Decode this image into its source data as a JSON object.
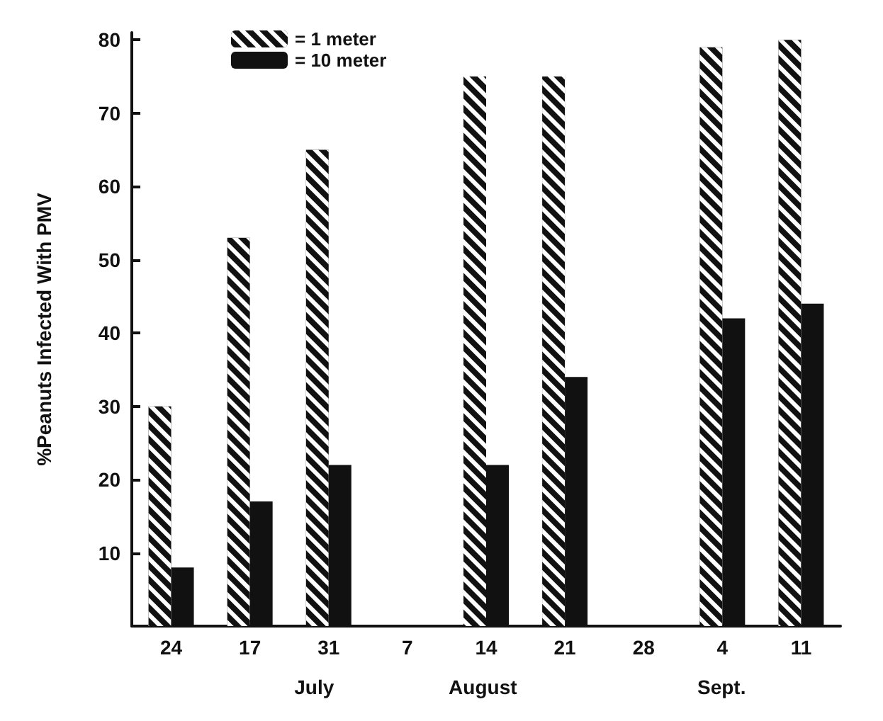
{
  "chart_data": {
    "type": "bar",
    "ylabel": "%Peanuts Infected With PMV",
    "categories": [
      "24",
      "17",
      "31",
      "7",
      "14",
      "21",
      "28",
      "4",
      "11"
    ],
    "series": [
      {
        "name": "= 1 meter",
        "color": "#111111",
        "values": [
          30,
          53,
          65,
          null,
          75,
          75,
          null,
          79,
          80
        ]
      },
      {
        "name": "= 10 meter",
        "color": "#111111",
        "values": [
          8,
          17,
          22,
          null,
          22,
          34,
          null,
          42,
          44
        ]
      }
    ],
    "ylim": [
      0,
      81
    ],
    "yticks": [
      10,
      20,
      30,
      40,
      50,
      60,
      70,
      80
    ],
    "grid": false,
    "legend": "top left",
    "annotations": [
      "July",
      "August",
      "Sept."
    ]
  }
}
